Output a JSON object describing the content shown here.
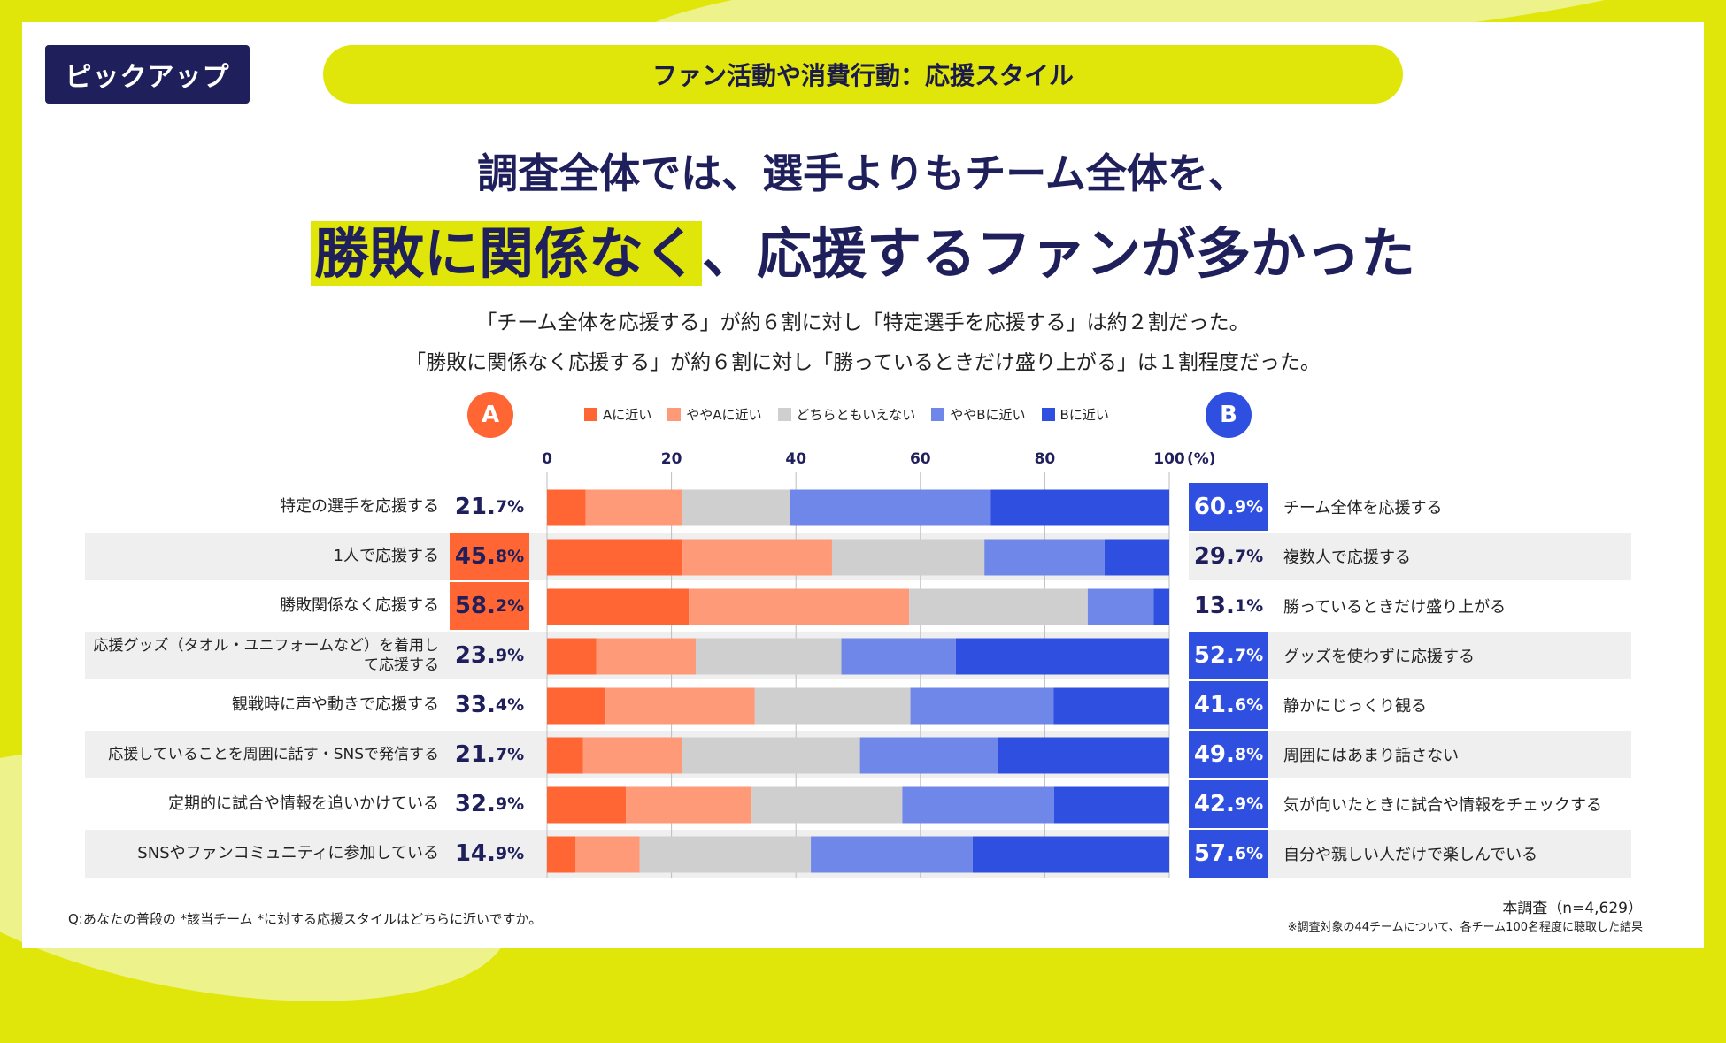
{
  "badge": "ピックアップ",
  "topic": "ファン活動や消費行動：応援スタイル",
  "headline": {
    "line1": "調査全体では、選手よりもチーム全体を、",
    "line2_highlight": "勝敗に関係なく",
    "line2_rest": "、応援するファンが多かった"
  },
  "subtitle": {
    "line1": "「チーム全体を応援する」が約６割に対し「特定選手を応援する」は約２割だった。",
    "line2": "「勝敗に関係なく応援する」が約６割に対し「勝っているときだけ盛り上がる」は１割程度だった。"
  },
  "circle_a": "A",
  "circle_b": "B",
  "legend": [
    {
      "label": "Aに近い",
      "color": "#ff6633"
    },
    {
      "label": "ややAに近い",
      "color": "#ff9a78"
    },
    {
      "label": "どちらともいえない",
      "color": "#cfcfcf"
    },
    {
      "label": "ややBに近い",
      "color": "#6f87e8"
    },
    {
      "label": "Bに近い",
      "color": "#2f4fe0"
    }
  ],
  "rows": [
    {
      "left_label": "特定の選手を応援する",
      "left_int": "21.",
      "left_dec": "7%",
      "left_hi": false,
      "right_int": "60.",
      "right_dec": "9%",
      "right_hi": true,
      "right_label": "チーム全体を応援する"
    },
    {
      "left_label": "1人で応援する",
      "left_int": "45.",
      "left_dec": "8%",
      "left_hi": true,
      "right_int": "29.",
      "right_dec": "7%",
      "right_hi": false,
      "right_label": "複数人で応援する"
    },
    {
      "left_label": "勝敗関係なく応援する",
      "left_int": "58.",
      "left_dec": "2%",
      "left_hi": true,
      "right_int": "13.",
      "right_dec": "1%",
      "right_hi": false,
      "right_label": "勝っているときだけ盛り上がる"
    },
    {
      "left_label": "応援グッズ（タオル・ユニフォームなど）を着用して応援する",
      "left_int": "23.",
      "left_dec": "9%",
      "left_hi": false,
      "right_int": "52.",
      "right_dec": "7%",
      "right_hi": true,
      "right_label": "グッズを使わずに応援する"
    },
    {
      "left_label": "観戦時に声や動きで応援する",
      "left_int": "33.",
      "left_dec": "4%",
      "left_hi": false,
      "right_int": "41.",
      "right_dec": "6%",
      "right_hi": true,
      "right_label": "静かにじっくり観る"
    },
    {
      "left_label": "応援していることを周囲に話す・SNSで発信する",
      "left_int": "21.",
      "left_dec": "7%",
      "left_hi": false,
      "right_int": "49.",
      "right_dec": "8%",
      "right_hi": true,
      "right_label": "周囲にはあまり話さない"
    },
    {
      "left_label": "定期的に試合や情報を追いかけている",
      "left_int": "32.",
      "left_dec": "9%",
      "left_hi": false,
      "right_int": "42.",
      "right_dec": "9%",
      "right_hi": true,
      "right_label": "気が向いたときに試合や情報をチェックする"
    },
    {
      "left_label": "SNSやファンコミュニティに参加している",
      "left_int": "14.",
      "left_dec": "9%",
      "left_hi": false,
      "right_int": "57.",
      "right_dec": "6%",
      "right_hi": true,
      "right_label": "自分や親しい人だけで楽しんでいる"
    }
  ],
  "chart_data": {
    "type": "bar",
    "orientation": "horizontal-stacked-100",
    "categories": [
      "特定の選手を応援する",
      "1人で応援する",
      "勝敗関係なく応援する",
      "応援グッズ（タオル・ユニフォームなど）を着用して応援する",
      "観戦時に声や動きで応援する",
      "応援していることを周囲に話す・SNSで発信する",
      "定期的に試合や情報を追いかけている",
      "SNSやファンコミュニティに参加している"
    ],
    "series": [
      {
        "name": "Aに近い",
        "values": [
          6.2,
          21.8,
          22.8,
          7.9,
          9.4,
          5.8,
          12.7,
          4.6
        ]
      },
      {
        "name": "ややAに近い",
        "values": [
          15.5,
          24.0,
          35.4,
          16.0,
          24.0,
          15.9,
          20.2,
          10.3
        ]
      },
      {
        "name": "どちらともいえない",
        "values": [
          17.4,
          24.5,
          28.7,
          23.4,
          25.0,
          28.6,
          24.2,
          27.5
        ]
      },
      {
        "name": "ややBに近い",
        "values": [
          32.2,
          19.3,
          10.6,
          18.4,
          23.0,
          22.2,
          24.4,
          26.0
        ]
      },
      {
        "name": "Bに近い",
        "values": [
          28.7,
          10.4,
          2.5,
          34.3,
          18.6,
          27.5,
          18.5,
          31.6
        ]
      }
    ],
    "xlim": [
      0,
      100
    ],
    "ticks": [
      "0",
      "20",
      "40",
      "60",
      "80",
      "100"
    ],
    "xlabel": "(%)"
  },
  "footnote": "Q:あなたの普段の *該当チーム *に対する応援スタイルはどちらに近いですか。",
  "survey": "本調査（n=4,629）",
  "survey_note": "※調査対象の44チームについて、各チーム100名程度に聴取した結果"
}
